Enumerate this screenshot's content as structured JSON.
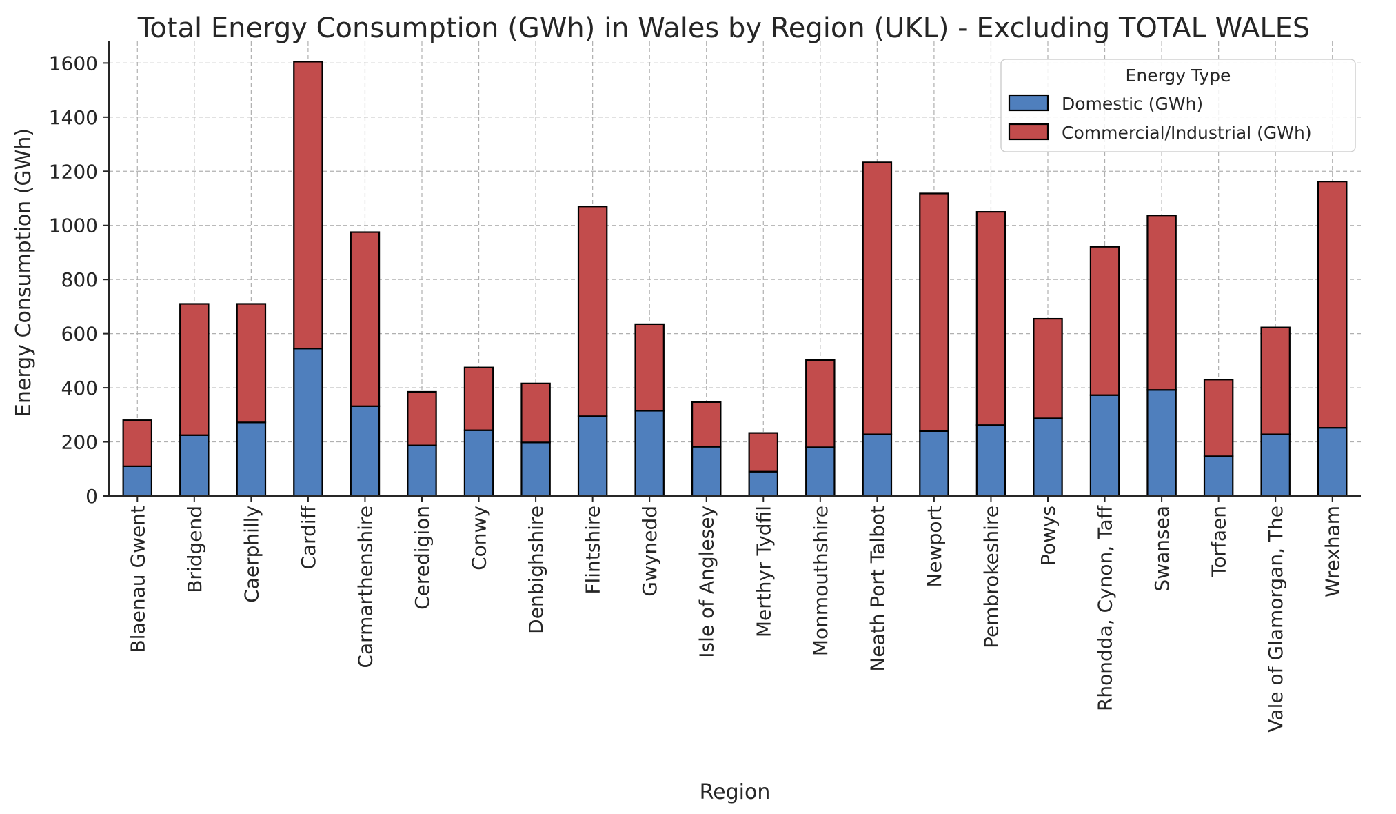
{
  "chart_data": {
    "type": "bar",
    "stacked": true,
    "title": "Total Energy Consumption (GWh) in Wales by Region (UKL) - Excluding TOTAL WALES",
    "xlabel": "Region",
    "ylabel": "Energy Consumption (GWh)",
    "ylim": [
      0,
      1680
    ],
    "yticks": [
      0,
      200,
      400,
      600,
      800,
      1000,
      1200,
      1400,
      1600
    ],
    "grid": true,
    "legend": {
      "title": "Energy Type",
      "placement": "top-right"
    },
    "categories": [
      "Blaenau Gwent",
      "Bridgend",
      "Caerphilly",
      "Cardiff",
      "Carmarthenshire",
      "Ceredigion",
      "Conwy",
      "Denbighshire",
      "Flintshire",
      "Gwynedd",
      "Isle of Anglesey",
      "Merthyr Tydfil",
      "Monmouthshire",
      "Neath Port Talbot",
      "Newport",
      "Pembrokeshire",
      "Powys",
      "Rhondda, Cynon, Taff",
      "Swansea",
      "Torfaen",
      "Vale of Glamorgan, The",
      "Wrexham"
    ],
    "series": [
      {
        "name": "Domestic (GWh)",
        "color": "#4f7fbd",
        "values": [
          110,
          225,
          272,
          545,
          332,
          187,
          243,
          198,
          295,
          315,
          182,
          90,
          180,
          228,
          240,
          262,
          287,
          373,
          392,
          147,
          228,
          252
        ]
      },
      {
        "name": "Commercial/Industrial (GWh)",
        "color": "#c24c4c",
        "values": [
          170,
          485,
          438,
          1060,
          643,
          198,
          232,
          218,
          775,
          320,
          165,
          143,
          322,
          1005,
          878,
          788,
          368,
          548,
          645,
          283,
          395,
          910
        ]
      }
    ]
  }
}
